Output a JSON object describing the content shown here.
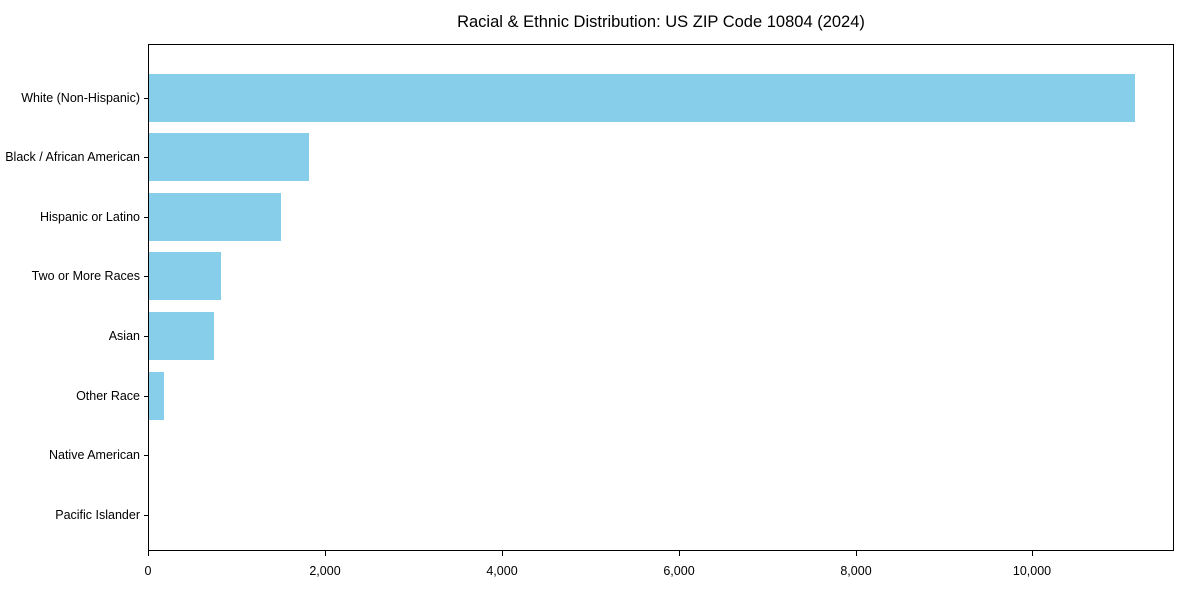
{
  "title": "Racial & Ethnic Distribution: US ZIP Code 10804 (2024)",
  "chart_data": {
    "type": "bar",
    "orientation": "horizontal",
    "title": "Racial & Ethnic Distribution: US ZIP Code 10804 (2024)",
    "categories": [
      "White (Non-Hispanic)",
      "Black / African American",
      "Hispanic or Latino",
      "Two or More Races",
      "Asian",
      "Other Race",
      "Native American",
      "Pacific Islander"
    ],
    "values": [
      11170,
      1810,
      1495,
      815,
      735,
      175,
      0,
      0
    ],
    "xlabel": "",
    "ylabel": "",
    "xlim": [
      0,
      11600
    ],
    "x_ticks": [
      0,
      2000,
      4000,
      6000,
      8000,
      10000
    ],
    "x_tick_labels": [
      "0",
      "2,000",
      "4,000",
      "6,000",
      "8,000",
      "10,000"
    ],
    "bar_color": "#87CEEB",
    "grid": false,
    "legend_position": "none"
  }
}
